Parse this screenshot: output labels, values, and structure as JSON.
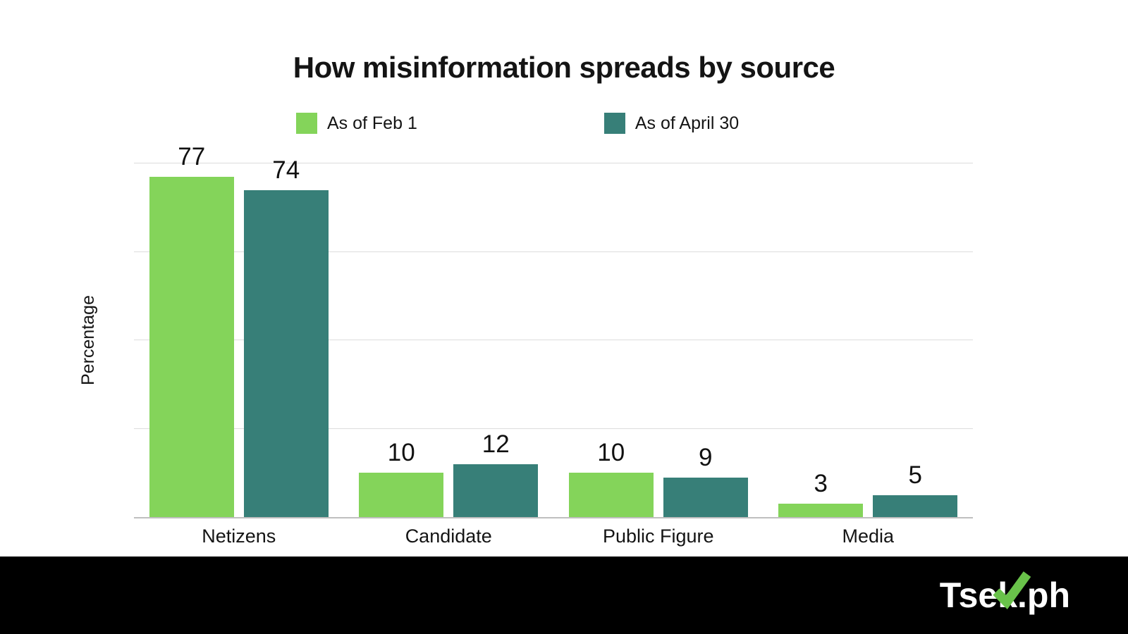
{
  "title": "How misinformation spreads by source",
  "ylabel": "Percentage",
  "legend": [
    {
      "label": "As of Feb 1",
      "color": "#84d45a"
    },
    {
      "label": "As of April 30",
      "color": "#377f78"
    }
  ],
  "footer": {
    "logo_prefix": "Tse",
    "logo_k": "k",
    "logo_suffix": ".ph",
    "check_color": "#69c24a"
  },
  "chart_data": {
    "type": "bar",
    "categories": [
      "Netizens",
      "Candidate",
      "Public Figure",
      "Media"
    ],
    "series": [
      {
        "name": "As of Feb 1",
        "color": "#84d45a",
        "values": [
          77,
          10,
          10,
          3
        ]
      },
      {
        "name": "As of April 30",
        "color": "#377f78",
        "values": [
          74,
          12,
          9,
          5
        ]
      }
    ],
    "title": "How misinformation spreads by source",
    "xlabel": "",
    "ylabel": "Percentage",
    "ylim": [
      0,
      80
    ],
    "gridline_step": 20,
    "grid": true,
    "legend_position": "top",
    "value_labels": true
  }
}
